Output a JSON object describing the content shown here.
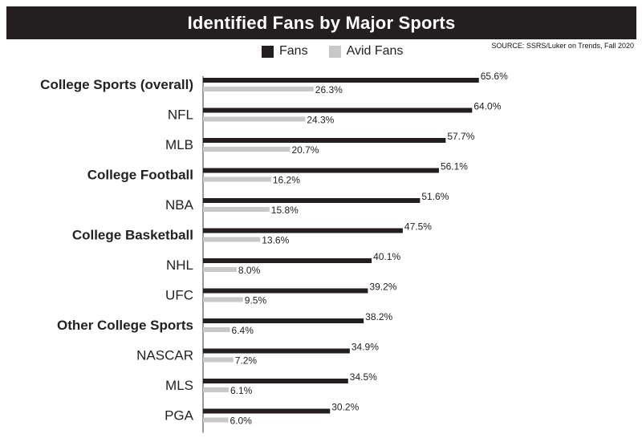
{
  "chart_data": {
    "type": "bar",
    "orientation": "horizontal",
    "title": "Identified Fans by Major Sports",
    "source": "SOURCE: SSRS/Luker on Trends, Fall 2020",
    "categories": [
      "College Sports (overall)",
      "NFL",
      "MLB",
      "College Football",
      "NBA",
      "College Basketball",
      "NHL",
      "UFC",
      "Other College Sports",
      "NASCAR",
      "MLS",
      "PGA"
    ],
    "bold_categories": [
      "College Sports (overall)",
      "College Football",
      "College Basketball",
      "Other College Sports"
    ],
    "series": [
      {
        "name": "Fans",
        "color": "#231f20",
        "values": [
          65.6,
          64.0,
          57.7,
          56.1,
          51.6,
          47.5,
          40.1,
          39.2,
          38.2,
          34.9,
          34.5,
          30.2
        ],
        "labels": [
          "65.6%",
          "64.0%",
          "57.7%",
          "56.1%",
          "51.6%",
          "47.5%",
          "40.1%",
          "39.2%",
          "38.2%",
          "34.9%",
          "34.5%",
          "30.2%"
        ]
      },
      {
        "name": "Avid Fans",
        "color": "#c8c8c8",
        "values": [
          26.3,
          24.3,
          20.7,
          16.2,
          15.8,
          13.6,
          8.0,
          9.5,
          6.4,
          7.2,
          6.1,
          6.0
        ],
        "labels": [
          "26.3%",
          "24.3%",
          "20.7%",
          "16.2%",
          "15.8%",
          "13.6%",
          "8.0%",
          "9.5%",
          "6.4%",
          "7.2%",
          "6.1%",
          "6.0%"
        ]
      }
    ],
    "legend_position": "top",
    "grid": false
  }
}
